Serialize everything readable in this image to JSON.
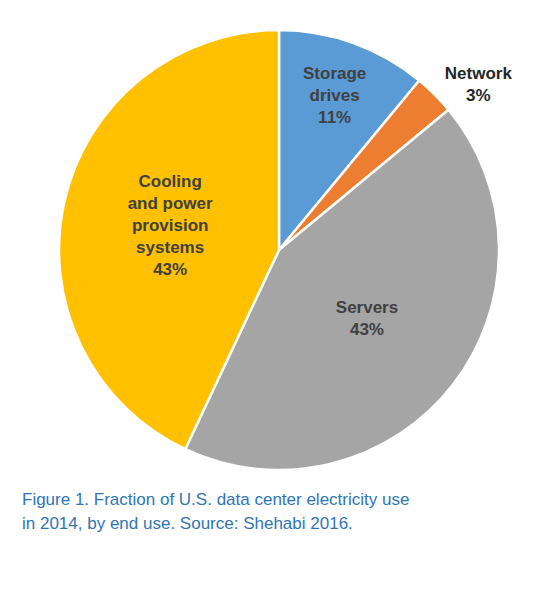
{
  "chart_data": {
    "type": "pie",
    "categories": [
      "Storage drives",
      "Network",
      "Servers",
      "Cooling and power provision systems"
    ],
    "values": [
      11,
      3,
      43,
      43
    ],
    "value_labels": [
      "11%",
      "3%",
      "43%",
      "43%"
    ],
    "colors": [
      "#5B9BD5",
      "#ED7D31",
      "#A5A5A5",
      "#FFC000"
    ],
    "data_labels": true,
    "caption": [
      "Figure 1. Fraction of U.S. data center electricity use",
      "in 2014, by end use. Source: Shehabi 2016."
    ]
  }
}
